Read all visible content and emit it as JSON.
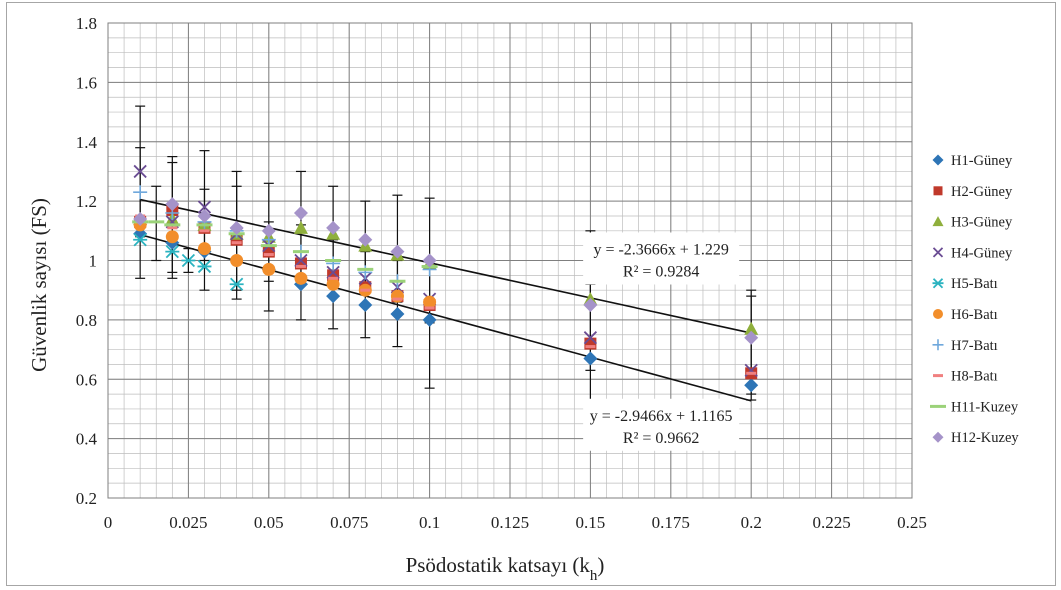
{
  "chart_data": {
    "type": "scatter",
    "xlabel": "Psödostatik katsayı (k",
    "xlabel_sub": "h",
    "xlabel_close": ")",
    "ylabel": "Güvenlik sayısı (FS)",
    "xlim": [
      0,
      0.25
    ],
    "ylim": [
      0.2,
      1.8
    ],
    "xticks": [
      0,
      0.025,
      0.05,
      0.075,
      0.1,
      0.125,
      0.15,
      0.175,
      0.2,
      0.225,
      0.25
    ],
    "xtick_labels": [
      "0",
      "0.025",
      "0.05",
      "0.075",
      "0.1",
      "0.125",
      "0.15",
      "0.175",
      "0.2",
      "0.225",
      "0.25"
    ],
    "yticks": [
      0.2,
      0.4,
      0.6,
      0.8,
      1,
      1.2,
      1.4,
      1.6,
      1.8
    ],
    "ytick_labels": [
      "0.2",
      "0.4",
      "0.6",
      "0.8",
      "1",
      "1.2",
      "1.4",
      "1.6",
      "1.8"
    ],
    "grid": true,
    "legend_position": "right",
    "series": [
      {
        "name": "H1-Güney",
        "color": "#2e75b6",
        "marker": "diamond",
        "x": [
          0.01,
          0.02,
          0.03,
          0.04,
          0.05,
          0.06,
          0.07,
          0.08,
          0.09,
          0.1,
          0.15,
          0.2
        ],
        "y": [
          1.09,
          1.06,
          1.03,
          1.0,
          0.97,
          0.92,
          0.88,
          0.85,
          0.82,
          0.8,
          0.67,
          0.58
        ]
      },
      {
        "name": "H2-Güney",
        "color": "#c0392b",
        "marker": "square",
        "x": [
          0.01,
          0.02,
          0.03,
          0.04,
          0.05,
          0.06,
          0.07,
          0.08,
          0.09,
          0.1,
          0.15,
          0.2
        ],
        "y": [
          1.13,
          1.17,
          1.11,
          1.07,
          1.03,
          0.99,
          0.95,
          0.91,
          0.88,
          0.85,
          0.72,
          0.62
        ]
      },
      {
        "name": "H3-Güney",
        "color": "#8faf3c",
        "marker": "triangle",
        "x": [
          0.01,
          0.02,
          0.03,
          0.04,
          0.05,
          0.06,
          0.07,
          0.08,
          0.09,
          0.1,
          0.15,
          0.2
        ],
        "y": [
          1.14,
          1.14,
          1.12,
          1.09,
          1.08,
          1.11,
          1.09,
          1.05,
          1.02,
          0.99,
          0.87,
          0.77
        ]
      },
      {
        "name": "H4-Güney",
        "color": "#6a4c93",
        "marker": "x",
        "x": [
          0.01,
          0.02,
          0.03,
          0.04,
          0.05,
          0.06,
          0.07,
          0.08,
          0.09,
          0.1,
          0.15,
          0.2
        ],
        "y": [
          1.3,
          1.13,
          1.18,
          1.09,
          1.05,
          1.0,
          0.96,
          0.94,
          0.91,
          0.87,
          0.74,
          0.63
        ]
      },
      {
        "name": "H5-Batı",
        "color": "#2bb3c0",
        "marker": "asterisk",
        "x": [
          0.01,
          0.02,
          0.025,
          0.03,
          0.04
        ],
        "y": [
          1.07,
          1.03,
          1.0,
          0.98,
          0.92
        ]
      },
      {
        "name": "H6-Batı",
        "color": "#f28e2b",
        "marker": "circle",
        "x": [
          0.01,
          0.02,
          0.03,
          0.04,
          0.05,
          0.06,
          0.07,
          0.08,
          0.09,
          0.1
        ],
        "y": [
          1.12,
          1.08,
          1.04,
          1.0,
          0.97,
          0.94,
          0.92,
          0.9,
          0.88,
          0.86
        ]
      },
      {
        "name": "H7-Batı",
        "color": "#6fa8dc",
        "marker": "plus",
        "x": [
          0.01,
          0.02,
          0.03,
          0.04,
          0.05,
          0.06,
          0.07,
          0.08,
          0.09,
          0.1
        ],
        "y": [
          1.23,
          1.16,
          1.13,
          1.1,
          1.07,
          1.03,
          0.99,
          0.96,
          0.93,
          0.97
        ]
      },
      {
        "name": "H8-Batı",
        "color": "#f08080",
        "marker": "dash",
        "x": [
          0.01,
          0.02,
          0.03,
          0.04,
          0.05,
          0.06,
          0.07,
          0.08,
          0.09,
          0.1,
          0.15,
          0.2
        ],
        "y": [
          1.15,
          1.11,
          1.1,
          1.06,
          1.02,
          0.98,
          0.94,
          0.9,
          0.87,
          0.84,
          0.71,
          0.62
        ]
      },
      {
        "name": "H11-Kuzey",
        "color": "#9bd279",
        "marker": "hline",
        "x": [
          0.01,
          0.015,
          0.02,
          0.03,
          0.04,
          0.05,
          0.06,
          0.07,
          0.08,
          0.09,
          0.1
        ],
        "y": [
          1.13,
          1.13,
          1.12,
          1.12,
          1.09,
          1.05,
          1.03,
          1.0,
          0.97,
          0.93,
          0.98
        ]
      },
      {
        "name": "H12-Kuzey",
        "color": "#a593c9",
        "marker": "diamond",
        "x": [
          0.01,
          0.02,
          0.03,
          0.04,
          0.05,
          0.06,
          0.07,
          0.08,
          0.09,
          0.1,
          0.15,
          0.2
        ],
        "y": [
          1.14,
          1.19,
          1.15,
          1.11,
          1.1,
          1.16,
          1.11,
          1.07,
          1.03,
          1.0,
          0.85,
          0.74
        ]
      }
    ],
    "error_bars": [
      {
        "x": 0.01,
        "y": 1.3,
        "lo": 1.08,
        "hi": 1.52
      },
      {
        "x": 0.01,
        "y": 1.14,
        "lo": 0.94,
        "hi": 1.38
      },
      {
        "x": 0.015,
        "y": 1.13,
        "lo": 1.0,
        "hi": 1.25
      },
      {
        "x": 0.02,
        "y": 1.17,
        "lo": 0.96,
        "hi": 1.35
      },
      {
        "x": 0.02,
        "y": 1.08,
        "lo": 0.94,
        "hi": 1.33
      },
      {
        "x": 0.025,
        "y": 1.0,
        "lo": 0.96,
        "hi": 1.04
      },
      {
        "x": 0.03,
        "y": 1.18,
        "lo": 1.0,
        "hi": 1.37
      },
      {
        "x": 0.03,
        "y": 1.04,
        "lo": 0.9,
        "hi": 1.24
      },
      {
        "x": 0.04,
        "y": 1.1,
        "lo": 0.9,
        "hi": 1.3
      },
      {
        "x": 0.04,
        "y": 0.96,
        "lo": 0.87,
        "hi": 1.25
      },
      {
        "x": 0.05,
        "y": 1.1,
        "lo": 0.93,
        "hi": 1.26
      },
      {
        "x": 0.05,
        "y": 0.98,
        "lo": 0.83,
        "hi": 1.13
      },
      {
        "x": 0.06,
        "y": 1.16,
        "lo": 0.94,
        "hi": 1.3
      },
      {
        "x": 0.06,
        "y": 0.95,
        "lo": 0.8,
        "hi": 1.12
      },
      {
        "x": 0.07,
        "y": 1.1,
        "lo": 0.94,
        "hi": 1.25
      },
      {
        "x": 0.07,
        "y": 0.92,
        "lo": 0.77,
        "hi": 1.07
      },
      {
        "x": 0.08,
        "y": 1.07,
        "lo": 0.91,
        "hi": 1.2
      },
      {
        "x": 0.08,
        "y": 0.9,
        "lo": 0.74,
        "hi": 1.03
      },
      {
        "x": 0.09,
        "y": 1.02,
        "lo": 0.86,
        "hi": 1.22
      },
      {
        "x": 0.09,
        "y": 0.85,
        "lo": 0.71,
        "hi": 1.0
      },
      {
        "x": 0.1,
        "y": 1.0,
        "lo": 0.79,
        "hi": 1.21
      },
      {
        "x": 0.1,
        "y": 0.82,
        "lo": 0.57,
        "hi": 1.0
      },
      {
        "x": 0.15,
        "y": 0.85,
        "lo": 0.63,
        "hi": 1.1
      },
      {
        "x": 0.15,
        "y": 0.7,
        "lo": 0.42,
        "hi": 0.92
      },
      {
        "x": 0.2,
        "y": 0.75,
        "lo": 0.55,
        "hi": 0.9
      },
      {
        "x": 0.2,
        "y": 0.62,
        "lo": 0.53,
        "hi": 0.88
      }
    ],
    "trendlines": [
      {
        "slope": -2.3666,
        "intercept": 1.229,
        "x_range": [
          0.01,
          0.2
        ],
        "equation": "y = -2.3666x + 1.229",
        "r2": "R² = 0.9284"
      },
      {
        "slope": -2.9466,
        "intercept": 1.1165,
        "x_range": [
          0.01,
          0.2
        ],
        "equation": "y = -2.9466x + 1.1165",
        "r2": "R² = 0.9662"
      }
    ]
  }
}
